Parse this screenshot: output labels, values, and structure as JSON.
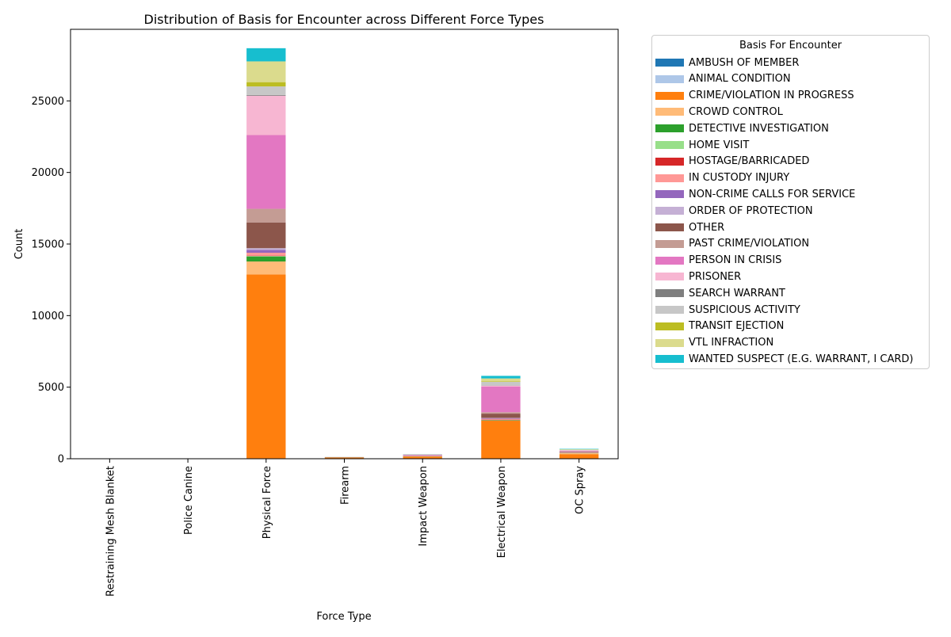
{
  "chart_data": {
    "type": "bar",
    "stacked": true,
    "title": "Distribution of Basis for Encounter across Different Force Types",
    "xlabel": "Force Type",
    "ylabel": "Count",
    "ylim": [
      0,
      30000
    ],
    "yticks": [
      0,
      5000,
      10000,
      15000,
      20000,
      25000
    ],
    "categories": [
      "Restraining Mesh Blanket",
      "Police Canine",
      "Physical Force",
      "Firearm",
      "Impact Weapon",
      "Electrical Weapon",
      "OC Spray"
    ],
    "legend_title": "Basis For Encounter",
    "legend_position": "outside-right",
    "series": [
      {
        "name": "AMBUSH OF MEMBER",
        "color": "#1f77b4",
        "values": [
          0,
          0,
          10,
          0,
          0,
          0,
          0
        ]
      },
      {
        "name": "ANIMAL CONDITION",
        "color": "#aec7e8",
        "values": [
          0,
          0,
          20,
          0,
          0,
          5,
          2
        ]
      },
      {
        "name": "CRIME/VIOLATION IN PROGRESS",
        "color": "#ff7f0e",
        "values": [
          2,
          3,
          12850,
          80,
          150,
          2650,
          320
        ]
      },
      {
        "name": "CROWD CONTROL",
        "color": "#ffbb78",
        "values": [
          0,
          0,
          900,
          0,
          10,
          10,
          60
        ]
      },
      {
        "name": "DETECTIVE INVESTIGATION",
        "color": "#2ca02c",
        "values": [
          0,
          0,
          350,
          5,
          5,
          30,
          10
        ]
      },
      {
        "name": "HOME VISIT",
        "color": "#98df8a",
        "values": [
          0,
          0,
          30,
          0,
          0,
          5,
          2
        ]
      },
      {
        "name": "HOSTAGE/BARRICADED",
        "color": "#d62728",
        "values": [
          0,
          0,
          30,
          3,
          5,
          30,
          5
        ]
      },
      {
        "name": "IN CUSTODY INJURY",
        "color": "#ff9896",
        "values": [
          0,
          0,
          200,
          0,
          5,
          60,
          20
        ]
      },
      {
        "name": "NON-CRIME CALLS FOR SERVICE",
        "color": "#9467bd",
        "values": [
          0,
          0,
          200,
          2,
          5,
          40,
          10
        ]
      },
      {
        "name": "ORDER OF PROTECTION",
        "color": "#c5b0d5",
        "values": [
          0,
          0,
          120,
          0,
          3,
          20,
          5
        ]
      },
      {
        "name": "OTHER",
        "color": "#8c564b",
        "values": [
          0,
          0,
          1800,
          15,
          20,
          300,
          40
        ]
      },
      {
        "name": "PAST CRIME/VIOLATION",
        "color": "#c49c94",
        "values": [
          0,
          0,
          950,
          5,
          15,
          100,
          30
        ]
      },
      {
        "name": "PERSON IN CRISIS",
        "color": "#e377c2",
        "values": [
          1,
          0,
          5150,
          5,
          50,
          1800,
          40
        ]
      },
      {
        "name": "PRISONER",
        "color": "#f7b6d2",
        "values": [
          0,
          0,
          2750,
          0,
          20,
          60,
          40
        ]
      },
      {
        "name": "SEARCH WARRANT",
        "color": "#7f7f7f",
        "values": [
          0,
          0,
          50,
          0,
          3,
          10,
          5
        ]
      },
      {
        "name": "SUSPICIOUS ACTIVITY",
        "color": "#c7c7c7",
        "values": [
          0,
          0,
          600,
          2,
          10,
          250,
          30
        ]
      },
      {
        "name": "TRANSIT EJECTION",
        "color": "#bcbd22",
        "values": [
          0,
          0,
          300,
          0,
          3,
          40,
          10
        ]
      },
      {
        "name": "VTL INFRACTION",
        "color": "#dbdb8d",
        "values": [
          0,
          0,
          1450,
          5,
          10,
          200,
          30
        ]
      },
      {
        "name": "WANTED SUSPECT (E.G. WARRANT, I CARD)",
        "color": "#17becf",
        "values": [
          0,
          0,
          920,
          3,
          10,
          180,
          30
        ]
      }
    ]
  }
}
